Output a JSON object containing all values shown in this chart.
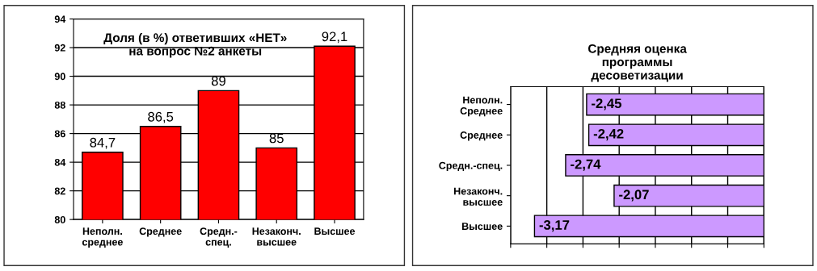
{
  "chart_data": [
    {
      "type": "bar",
      "title": "Доля (в %) ответивших «НЕТ»\nна вопрос №2 анкеты",
      "categories": [
        "Неполн.\nсреднее",
        "Среднее",
        "Средн.-\nспец.",
        "Незаконч.\nвысшее",
        "Высшее"
      ],
      "values": [
        84.7,
        86.5,
        89,
        85,
        92.1
      ],
      "value_labels": [
        "84,7",
        "86,5",
        "89",
        "85",
        "92,1"
      ],
      "color": "#ff0000",
      "ylim": [
        80,
        94
      ],
      "yticks": [
        80,
        82,
        84,
        86,
        88,
        90,
        92,
        94
      ],
      "grid": "y"
    },
    {
      "type": "bar",
      "orientation": "horizontal",
      "title": "Средняя оценка\nпрограммы\nдесоветизации",
      "categories": [
        "Неполн.\nСреднее",
        "Среднее",
        "Средн.-спец.",
        "Незаконч.\nвысшее",
        "Высшее"
      ],
      "values": [
        -2.45,
        -2.42,
        -2.74,
        -2.07,
        -3.17
      ],
      "value_labels": [
        "-2,45",
        "-2,42",
        "-2,74",
        "-2,07",
        "-3,17"
      ],
      "color": "#cc99ff",
      "xlim": [
        -3.5,
        0
      ],
      "xticks": [
        {
          "value": -3.5,
          "label": null
        },
        {
          "value": -3,
          "label": null
        },
        {
          "value": -2.5,
          "label": null
        },
        {
          "value": -2,
          "label": null
        },
        {
          "value": -1.5,
          "label": null
        },
        {
          "value": -1,
          "label": null
        },
        {
          "value": -0.5,
          "label": null
        },
        {
          "value": 0,
          "label": null
        }
      ],
      "grid": "x",
      "tick_labels": "y"
    }
  ]
}
